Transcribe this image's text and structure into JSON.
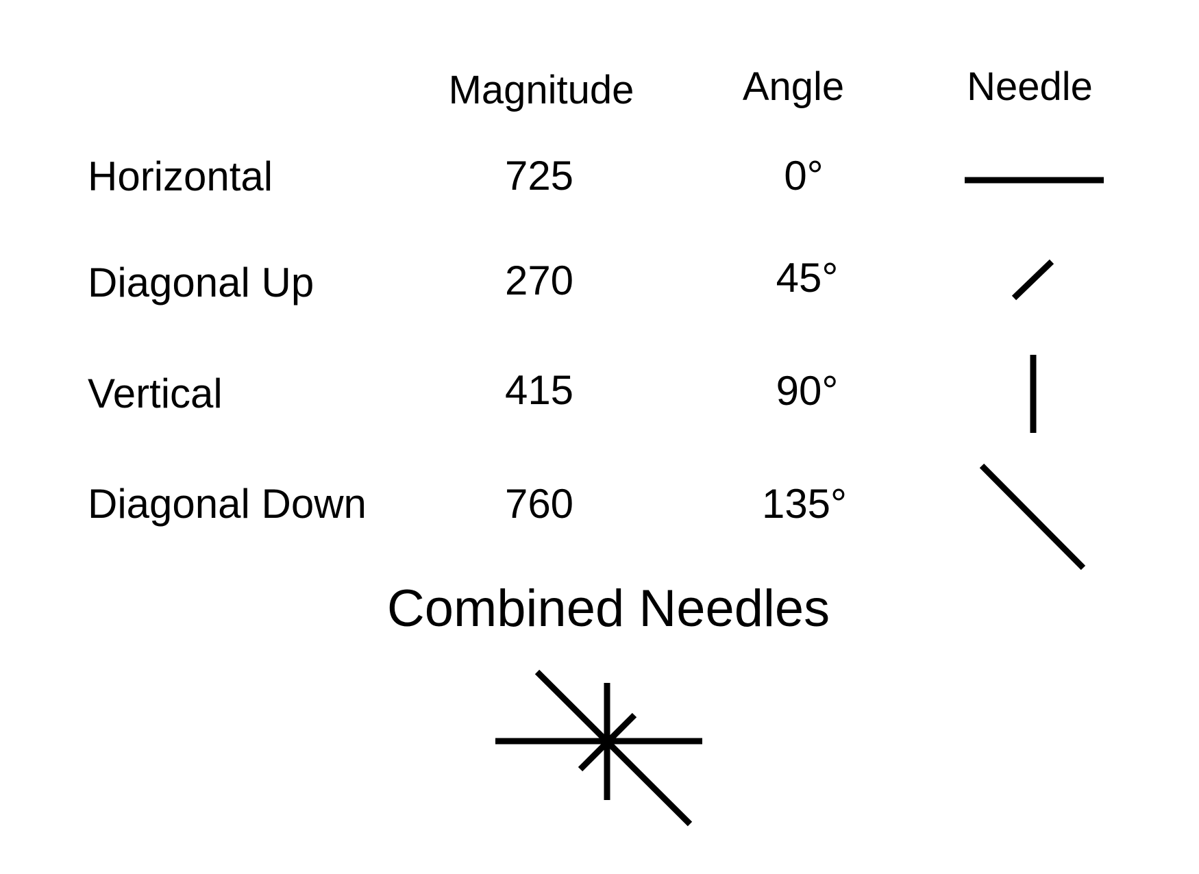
{
  "headers": {
    "magnitude": "Magnitude",
    "angle": "Angle",
    "needle": "Needle"
  },
  "rows": [
    {
      "label": "Horizontal",
      "magnitude": "725",
      "angle": "0°"
    },
    {
      "label": "Diagonal Up",
      "magnitude": "270",
      "angle": "45°"
    },
    {
      "label": "Vertical",
      "magnitude": "415",
      "angle": "90°"
    },
    {
      "label": "Diagonal Down",
      "magnitude": "760",
      "angle": "135°"
    }
  ],
  "combined": {
    "title": "Combined Needles"
  },
  "colors": {
    "ink": "#000000",
    "background": "#ffffff"
  }
}
